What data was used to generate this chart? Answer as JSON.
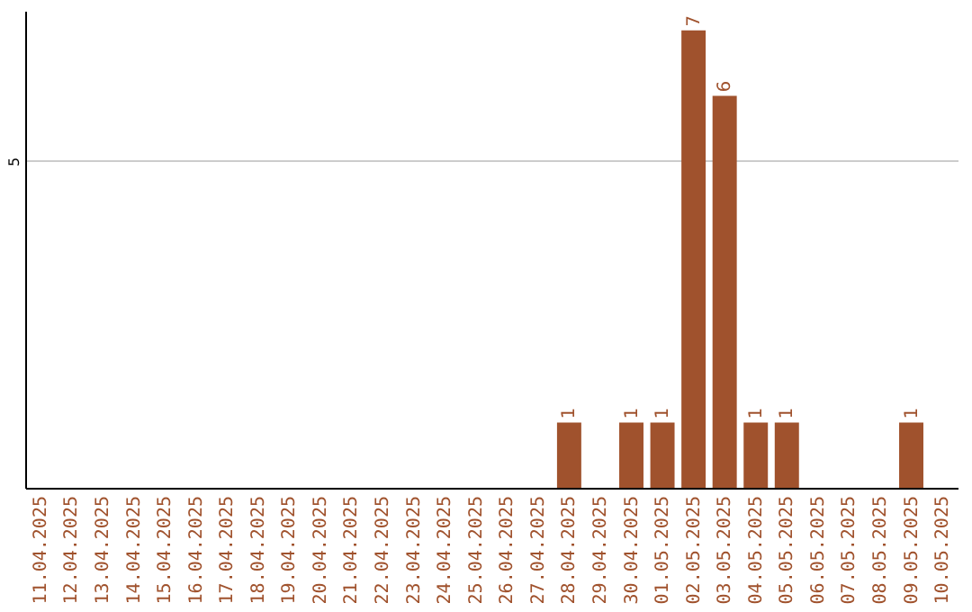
{
  "chart_data": {
    "type": "bar",
    "categories": [
      "11.04.2025",
      "12.04.2025",
      "13.04.2025",
      "14.04.2025",
      "15.04.2025",
      "16.04.2025",
      "17.04.2025",
      "18.04.2025",
      "19.04.2025",
      "20.04.2025",
      "21.04.2025",
      "22.04.2025",
      "23.04.2025",
      "24.04.2025",
      "25.04.2025",
      "26.04.2025",
      "27.04.2025",
      "28.04.2025",
      "29.04.2025",
      "30.04.2025",
      "01.05.2025",
      "02.05.2025",
      "03.05.2025",
      "04.05.2025",
      "05.05.2025",
      "06.05.2025",
      "07.05.2025",
      "08.05.2025",
      "09.05.2025",
      "10.05.2025"
    ],
    "values": [
      null,
      null,
      null,
      null,
      null,
      null,
      null,
      null,
      null,
      null,
      null,
      null,
      null,
      null,
      null,
      null,
      null,
      1,
      null,
      1,
      1,
      7,
      6,
      1,
      1,
      null,
      null,
      null,
      1,
      null
    ],
    "color": "#a0522d",
    "ylim": [
      0,
      7.3
    ],
    "yticks": [
      5
    ],
    "grid": "y",
    "data_labels": true
  }
}
